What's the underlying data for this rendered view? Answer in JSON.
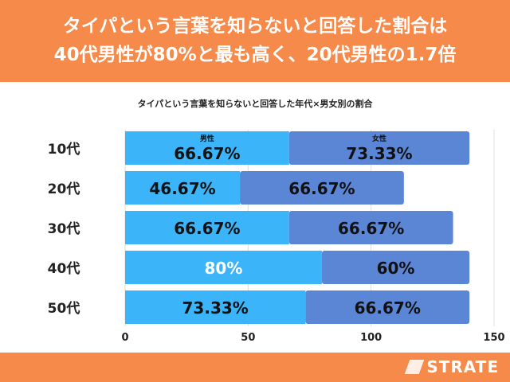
{
  "header": {
    "line1": "タイパという言葉を知らないと回答した割合は",
    "line2": "40代男性が80%と最も高く、20代男性の1.7倍"
  },
  "chart_data": {
    "type": "bar",
    "stacked": true,
    "orientation": "horizontal",
    "title": "タイパという言葉を知らないと回答した年代×男女別の割合",
    "categories": [
      "10代",
      "20代",
      "30代",
      "40代",
      "50代"
    ],
    "series": [
      {
        "name": "男性",
        "values": [
          66.67,
          46.67,
          66.67,
          80,
          73.33
        ],
        "labels": [
          "66.67%",
          "46.67%",
          "66.67%",
          "80%",
          "73.33%"
        ],
        "color": "#3BB4FA"
      },
      {
        "name": "女性",
        "values": [
          73.33,
          66.67,
          66.67,
          60,
          66.67
        ],
        "labels": [
          "73.33%",
          "66.67%",
          "66.67%",
          "60%",
          "66.67%"
        ],
        "color": "#5B86D6"
      }
    ],
    "xlim": [
      0,
      150
    ],
    "xticks": [
      "0",
      "50",
      "100",
      "150"
    ],
    "grid": true,
    "legend": "inside-first-bar"
  },
  "footer": {
    "brand": "STRATE"
  }
}
